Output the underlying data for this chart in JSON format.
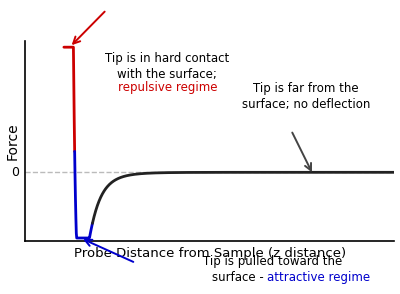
{
  "xlabel": "Probe Distance from Sample (z distance)",
  "ylabel": "Force",
  "background_color": "#ffffff",
  "zero_line_color": "#bbbbbb",
  "curve_color_black": "#222222",
  "curve_color_red": "#cc0000",
  "curve_color_blue": "#0000cc",
  "ann1_line1": "Tip is in hard contact",
  "ann1_line2": "with the surface;",
  "ann1_line3": "repulsive regime",
  "ann2_line1": "Tip is far from the",
  "ann2_line2": "surface; no deflection",
  "ann3_line1": "Tip is pulled toward the",
  "ann3_line2_black": "surface - ",
  "ann3_line2_blue": "attractive regime",
  "xlim": [
    0.0,
    10.0
  ],
  "ylim": [
    -2.2,
    4.2
  ],
  "figsize": [
    4.0,
    2.94
  ],
  "dpi": 100
}
